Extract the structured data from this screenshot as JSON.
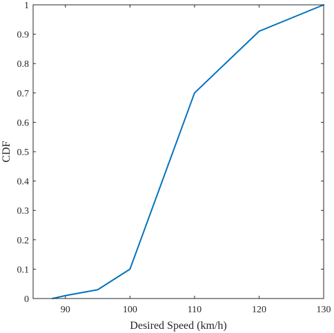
{
  "chart_data": {
    "type": "line",
    "xlabel": "Desired Speed (km/h)",
    "ylabel": "CDF",
    "xlim": [
      85,
      130
    ],
    "ylim": [
      0,
      1
    ],
    "xticks": [
      90,
      100,
      110,
      120,
      130
    ],
    "xtick_labels": [
      "90",
      "100",
      "110",
      "120",
      "130"
    ],
    "yticks": [
      0,
      0.1,
      0.2,
      0.3,
      0.4,
      0.5,
      0.6,
      0.7,
      0.8,
      0.9,
      1
    ],
    "ytick_labels": [
      "0",
      "0.1",
      "0.2",
      "0.3",
      "0.4",
      "0.5",
      "0.6",
      "0.7",
      "0.8",
      "0.9",
      "1"
    ],
    "grid": false,
    "series": [
      {
        "color": "#0072BD",
        "x": [
          88,
          90,
          95,
          100,
          110,
          120,
          130
        ],
        "y": [
          0,
          0.01,
          0.03,
          0.1,
          0.7,
          0.91,
          1
        ]
      }
    ]
  }
}
